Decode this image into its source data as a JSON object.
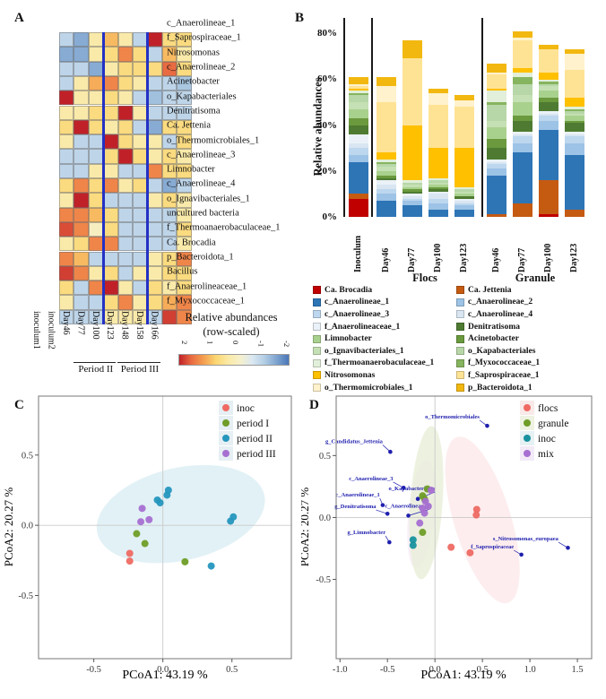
{
  "figure": {
    "panel_a_label": "A",
    "panel_b_label": "B",
    "panel_c_label": "C",
    "panel_d_label": "D"
  },
  "chart_data": [
    {
      "id": "A",
      "type": "heatmap",
      "rows": [
        "c_Anaerolineae_1",
        "f_Saprospiraceae_1",
        "Nitrosomonas",
        "c_Anaerolineae_2",
        "Acinetobacter",
        "o_Kapabacteriales",
        "Denitratisoma",
        "Ca. Jettenia",
        "o_Thermomicrobiales_1",
        "c_Anaerolineae_3",
        "Limnobacter",
        "c_Anaerolineae_4",
        "o_Ignavibacteriales_1",
        "uncultured bacteria",
        "f_Thermoanaerobaculaceae_1",
        "Ca. Brocadia",
        "p_Bacteroidota_1",
        "Bacillus",
        "f_Anaerolineaceae_1",
        "f_Myxococcaceae_1"
      ],
      "cols": [
        "inoculum1",
        "inoculum2",
        "Day46",
        "Day77",
        "Day100",
        "Day123",
        "Day148",
        "Day158",
        "Day166"
      ],
      "values": [
        [
          -0.5,
          -1.1,
          0.3,
          0.9,
          0.3,
          -0.5,
          2,
          0.6,
          0.6
        ],
        [
          -1.1,
          -1.1,
          0.3,
          0.6,
          1.3,
          0.6,
          -0.5,
          0.9,
          0.3
        ],
        [
          -0.5,
          -0.5,
          -1.1,
          0.3,
          0.6,
          0.6,
          0.6,
          1.5,
          0.6
        ],
        [
          -0.5,
          0.3,
          1.0,
          1.3,
          0.6,
          0.3,
          -0.5,
          -0.5,
          -0.7
        ],
        [
          2,
          0.3,
          0.3,
          0.6,
          0.3,
          -0.5,
          -0.8,
          -0.5,
          -0.5
        ],
        [
          0.3,
          0.3,
          0.6,
          0.6,
          2,
          0.3,
          -0.5,
          -0.5,
          -0.5
        ],
        [
          0.6,
          2,
          0.6,
          0.3,
          0.6,
          -0.5,
          -1.1,
          0.6,
          0.6
        ],
        [
          0.3,
          -0.5,
          -0.5,
          2,
          0.6,
          0.3,
          0.3,
          -0.5,
          0.6
        ],
        [
          -0.5,
          -0.5,
          -0.5,
          0.6,
          2,
          0.6,
          0.3,
          0.6,
          0.3
        ],
        [
          -0.5,
          -0.5,
          0.3,
          0.3,
          -0.5,
          -0.5,
          1.3,
          0.6,
          0.6
        ],
        [
          0.6,
          1.3,
          0.6,
          1.3,
          0.3,
          0.6,
          -0.5,
          -1.1,
          -0.5
        ],
        [
          0.3,
          2,
          0.6,
          -0.5,
          -0.5,
          -0.5,
          0.3,
          0.6,
          0.3
        ],
        [
          1.3,
          1.3,
          0.9,
          0.6,
          -0.5,
          -0.5,
          -0.5,
          -0.5,
          0.3
        ],
        [
          1.7,
          1.3,
          0.1,
          0.6,
          -0.5,
          -0.5,
          -0.5,
          -0.5,
          0.6
        ],
        [
          0.3,
          0.6,
          1.3,
          1.3,
          -0.5,
          -0.5,
          -0.5,
          -0.5,
          0.3
        ],
        [
          1.3,
          0.9,
          -0.5,
          -0.5,
          -0.5,
          -0.5,
          0.3,
          0.6,
          1.3
        ],
        [
          1.8,
          1.3,
          0.3,
          0.6,
          -0.5,
          0.3,
          0.3,
          0.6,
          0.6
        ],
        [
          0.6,
          -0.5,
          1.3,
          2,
          0.3,
          -0.5,
          0.6,
          0.3,
          0.6
        ],
        [
          0.3,
          -0.5,
          -0.5,
          0.6,
          1.3,
          0.3,
          0.6,
          1.0,
          1.3
        ],
        [
          -0.5,
          -0.5,
          -0.5,
          0.3,
          0.3,
          0.3,
          -0.5,
          1.8,
          1.3
        ]
      ],
      "separators_after_cols": [
        3,
        6
      ],
      "period_annotations": [
        {
          "label": "Period II",
          "from_col": 3,
          "to_col": 6
        },
        {
          "label": "Period III",
          "from_col": 6,
          "to_col": 9
        }
      ],
      "colorbar": {
        "title_line1": "Relative abundances",
        "title_line2": "(row-scaled)",
        "ticks": [
          "2",
          "1",
          "0",
          "-1",
          "-2"
        ]
      }
    },
    {
      "id": "B",
      "type": "bar",
      "stacked": true,
      "ylabel": "Relative abundances",
      "ytick_values": [
        0,
        20,
        40,
        60,
        80
      ],
      "ytick_suffix": "%",
      "ylim": [
        0,
        83
      ],
      "categories": [
        "Inoculum",
        "Day46",
        "Day77",
        "Day100",
        "Day123",
        "Day46",
        "Day77",
        "Day100",
        "Day123"
      ],
      "group_labels": [
        {
          "label": "Flocs"
        },
        {
          "label": "Granule"
        }
      ],
      "series": [
        {
          "name": "Ca. Brocadia",
          "color": "#c00000",
          "values": [
            8,
            0,
            0,
            0,
            0,
            0,
            0,
            1,
            0
          ]
        },
        {
          "name": "Ca. Jettenia",
          "color": "#c55a11",
          "values": [
            2,
            0,
            0,
            0,
            0,
            1,
            6,
            15,
            3
          ]
        },
        {
          "name": "c_Anaerolineae_1",
          "color": "#2e75b6",
          "values": [
            14,
            7,
            5,
            3,
            3,
            17,
            22,
            22,
            24
          ]
        },
        {
          "name": "c_Anaerolineae_2",
          "color": "#9dc3e6",
          "values": [
            3,
            3,
            2,
            3,
            2,
            3,
            4,
            4,
            5
          ]
        },
        {
          "name": "c_Anaerolineae_3",
          "color": "#bdd7ee",
          "values": [
            3,
            2,
            1,
            2,
            1,
            2,
            3,
            2,
            3
          ]
        },
        {
          "name": "c_Anaerolineae_4",
          "color": "#d9e6f2",
          "values": [
            2,
            2,
            1,
            2,
            1,
            1,
            1,
            1,
            1
          ]
        },
        {
          "name": "f_Anaerolineaceae_1",
          "color": "#eaf1f8",
          "values": [
            4,
            2,
            1,
            1,
            1,
            1,
            1,
            1,
            1
          ]
        },
        {
          "name": "Denitratisoma",
          "color": "#4e7b31",
          "values": [
            4,
            1,
            1,
            1,
            1,
            5,
            5,
            4,
            4
          ]
        },
        {
          "name": "Acinetobacter",
          "color": "#6a9a3d",
          "values": [
            3,
            1,
            1,
            1,
            0,
            4,
            2,
            2,
            1
          ]
        },
        {
          "name": "Limnobacter",
          "color": "#a9d18e",
          "values": [
            4,
            2,
            1,
            1,
            1,
            5,
            6,
            3,
            2
          ]
        },
        {
          "name": "o_Ignavibacteriales_1",
          "color": "#c5e0b4",
          "values": [
            3,
            2,
            1,
            1,
            1,
            3,
            3,
            2,
            1
          ]
        },
        {
          "name": "o_Kapabacteriales",
          "color": "#b7d7a8",
          "values": [
            3,
            1,
            1,
            1,
            1,
            7,
            5,
            1,
            1
          ]
        },
        {
          "name": "f_Myxococcaceae_1",
          "color": "#86b45f",
          "values": [
            1,
            1,
            0,
            0,
            0,
            1,
            3,
            1,
            1
          ]
        },
        {
          "name": "f_Thermoanaerobaculaceae_1",
          "color": "#e2efda",
          "values": [
            1,
            1,
            1,
            1,
            1,
            5,
            2,
            1,
            1
          ]
        },
        {
          "name": "Nitrosomonas",
          "color": "#ffc000",
          "values": [
            1,
            3,
            24,
            13,
            17,
            1,
            2,
            3,
            4
          ]
        },
        {
          "name": "f_Saprospiraceae_1",
          "color": "#ffe395",
          "values": [
            1,
            22,
            29,
            19,
            18,
            6,
            12,
            10,
            12
          ]
        },
        {
          "name": "o_Thermomicrobiales_1",
          "color": "#fff2cc",
          "values": [
            1,
            7,
            0,
            5,
            3,
            1,
            1,
            0,
            7
          ]
        },
        {
          "name": "p_Bacteroidota_1",
          "color": "#f2b810",
          "values": [
            3,
            4,
            8,
            2,
            2,
            4,
            3,
            2,
            2
          ]
        }
      ],
      "legend_left": [
        "Ca. Brocadia",
        "c_Anaerolineae_1",
        "c_Anaerolineae_3",
        "f_Anaerolineaceae_1",
        "Limnobacter",
        "o_Ignavibacteriales_1",
        "f_Thermoanaerobaculaceae_1",
        "Nitrosomonas",
        "o_Thermomicrobiales_1"
      ],
      "legend_right": [
        "Ca. Jettenia",
        "c_Anaerolineae_2",
        "c_Anaerolineae_4",
        "Denitratisoma",
        "Acinetobacter",
        "o_Kapabacteriales",
        "f_Myxococcaceae_1",
        "f_Saprospiraceae_1",
        "p_Bacteroidota_1"
      ]
    },
    {
      "id": "C",
      "type": "scatter",
      "xlabel": "PCoA1: 43.19 %",
      "ylabel": "PCoA2: 20.27 %",
      "xlim": [
        -0.9,
        0.93
      ],
      "ylim": [
        -0.95,
        0.92
      ],
      "xticks": [
        -0.5,
        0.0,
        0.5
      ],
      "yticks": [
        0.5,
        0.0,
        -0.5
      ],
      "ellipses": [
        {
          "cx": 0.13,
          "cy": 0.08,
          "rx": 0.62,
          "ry": 0.33,
          "rot": -13,
          "fill": "#ddeef4",
          "opacity": 0.85
        }
      ],
      "groups": [
        {
          "name": "inoc",
          "color": "#ee6a63",
          "points": [
            [
              -0.24,
              -0.2
            ],
            [
              -0.24,
              -0.255
            ]
          ]
        },
        {
          "name": "period I",
          "color": "#6f9d27",
          "points": [
            [
              -0.19,
              -0.06
            ],
            [
              -0.13,
              -0.13
            ],
            [
              0.16,
              -0.26
            ]
          ]
        },
        {
          "name": "period II",
          "color": "#2596be",
          "points": [
            [
              0.04,
              0.25
            ],
            [
              0.03,
              0.215
            ],
            [
              -0.04,
              0.18
            ],
            [
              -0.02,
              0.16
            ],
            [
              0.51,
              0.06
            ],
            [
              0.49,
              0.03
            ],
            [
              0.35,
              -0.29
            ]
          ]
        },
        {
          "name": "period III",
          "color": "#a76fd1",
          "points": [
            [
              -0.15,
              0.12
            ],
            [
              -0.16,
              0.025
            ],
            [
              -0.1,
              0.04
            ]
          ]
        }
      ],
      "legend": [
        {
          "label": "inoc",
          "color": "#ee6a63",
          "key": "#e6eff3"
        },
        {
          "label": "period I",
          "color": "#6f9d27",
          "key": "#e6eff3"
        },
        {
          "label": "period II",
          "color": "#2596be",
          "key": "#e6eff3"
        },
        {
          "label": "period III",
          "color": "#a76fd1",
          "key": "#e6eff3"
        }
      ]
    },
    {
      "id": "D",
      "type": "scatter",
      "xlabel": "PCoA1: 43.19 %",
      "ylabel": "PCoA2: 20.27 %",
      "xlim": [
        -1.04,
        1.65
      ],
      "ylim": [
        -1.14,
        0.98
      ],
      "xticks": [
        -1.0,
        -0.5,
        0.0,
        0.5,
        1.0,
        1.5
      ],
      "yticks": [
        0.5,
        0.0,
        -0.5
      ],
      "ellipses": [
        {
          "cx": 0.5,
          "cy": -0.02,
          "rx": 0.3,
          "ry": 0.7,
          "rot": -17,
          "fill": "#fce8ea",
          "opacity": 0.8
        },
        {
          "cx": -0.14,
          "cy": 0.03,
          "rx": 0.14,
          "ry": 0.44,
          "rot": 6,
          "fill": "#f6ebf5",
          "opacity": 0.8
        },
        {
          "cx": -0.09,
          "cy": 0.12,
          "rx": 0.17,
          "ry": 0.62,
          "rot": 4,
          "fill": "#e9efd8",
          "opacity": 0.8
        }
      ],
      "groups": [
        {
          "name": "flocs",
          "color": "#ee6a63",
          "points": [
            [
              0.44,
              0.065
            ],
            [
              0.435,
              0.02
            ],
            [
              0.17,
              -0.24
            ],
            [
              0.37,
              -0.285
            ]
          ]
        },
        {
          "name": "granule",
          "color": "#6f9d27",
          "points": [
            [
              -0.08,
              0.23
            ],
            [
              -0.13,
              0.175
            ],
            [
              -0.11,
              0.15
            ],
            [
              -0.13,
              -0.12
            ]
          ]
        },
        {
          "name": "inoc",
          "color": "#18919e",
          "points": [
            [
              -0.23,
              -0.18
            ],
            [
              -0.23,
              -0.225
            ]
          ]
        },
        {
          "name": "mix",
          "color": "#a76fd1",
          "points": [
            [
              -0.04,
              0.22
            ],
            [
              -0.1,
              0.13
            ],
            [
              -0.07,
              0.09
            ],
            [
              -0.13,
              0.075
            ],
            [
              -0.11,
              0.035
            ],
            [
              -0.16,
              -0.045
            ]
          ]
        }
      ],
      "taxa_labels": [
        {
          "label": "o_Thermomicrobiales",
          "tx": 0.47,
          "ty": 0.8,
          "px": 0.55,
          "py": 0.74
        },
        {
          "label": "g_Candidatus_Jettenia",
          "tx": -0.55,
          "ty": 0.6,
          "px": -0.47,
          "py": 0.53
        },
        {
          "label": "c_Anaerolineae_3",
          "tx": -0.44,
          "ty": 0.3,
          "px": -0.33,
          "py": 0.24
        },
        {
          "label": "o_Kapabacteriales",
          "tx": 0.0,
          "ty": 0.22,
          "px": -0.18,
          "py": 0.15
        },
        {
          "label": "c_Anaerolineae_1",
          "tx": -0.58,
          "ty": 0.17,
          "px": -0.55,
          "py": 0.1
        },
        {
          "label": "g_Denitratisoma",
          "tx": -0.62,
          "ty": 0.075,
          "px": -0.5,
          "py": 0.03
        },
        {
          "label": "c_Anaerolineae_2",
          "tx": -0.06,
          "ty": 0.08,
          "px": -0.28,
          "py": 0.015
        },
        {
          "label": "g_Limnobacter",
          "tx": -0.52,
          "ty": -0.135,
          "px": -0.48,
          "py": -0.2
        },
        {
          "label": "s_Nitrosomonas_europaea",
          "tx": 1.3,
          "ty": -0.185,
          "px": 1.4,
          "py": -0.245
        },
        {
          "label": "f_Saprospiraceae",
          "tx": 0.83,
          "ty": -0.25,
          "px": 0.91,
          "py": -0.3
        }
      ],
      "label_color": "#1f1fae",
      "legend": [
        {
          "label": "flocs",
          "color": "#ee6a63",
          "key": "#f9e9e9"
        },
        {
          "label": "granule",
          "color": "#6f9d27",
          "key": "#eef2e2"
        },
        {
          "label": "inoc",
          "color": "#18919e",
          "key": "#e6f1f3"
        },
        {
          "label": "mix",
          "color": "#a76fd1",
          "key": "#f2eaf7"
        }
      ]
    }
  ]
}
